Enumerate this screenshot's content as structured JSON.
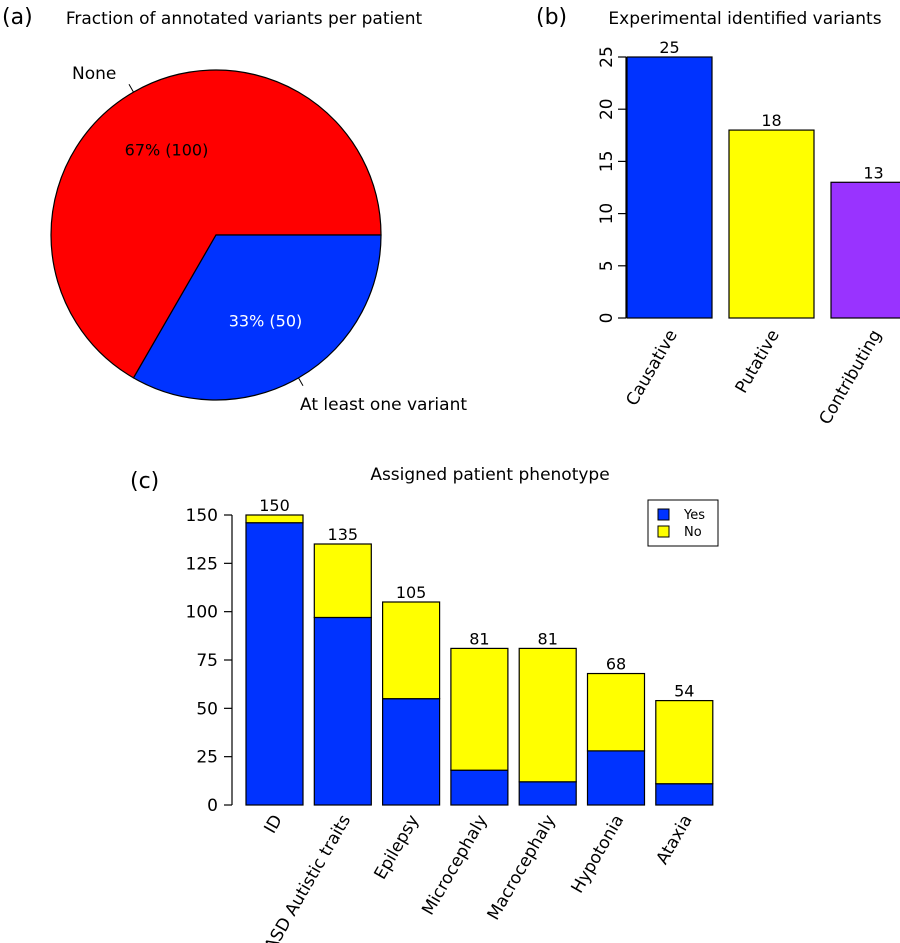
{
  "panels": {
    "a": "(a)",
    "b": "(b)",
    "c": "(c)"
  },
  "chart_data": [
    {
      "type": "pie",
      "title": "Fraction of annotated variants per patient",
      "slices": [
        {
          "name": "None",
          "value": 100,
          "label": "67% (100)",
          "color": "#ff0000",
          "label_color": "#000000"
        },
        {
          "name": "At least one variant",
          "value": 50,
          "label": "33% (50)",
          "color": "#0033ff",
          "label_color": "#ffffff"
        }
      ]
    },
    {
      "type": "bar",
      "title": "Experimental identified variants",
      "categories": [
        "Causative",
        "Putative",
        "Contributing"
      ],
      "values": [
        25,
        18,
        13
      ],
      "value_labels": [
        "25",
        "18",
        "13"
      ],
      "colors": [
        "#0033ff",
        "#ffff00",
        "#9933ff"
      ],
      "ylim": [
        0,
        25
      ],
      "yticks": [
        "0",
        "5",
        "10",
        "15",
        "20",
        "25"
      ]
    },
    {
      "type": "bar",
      "stacked": true,
      "title": "Assigned patient phenotype",
      "categories": [
        "ID",
        "ASD Autistic traits",
        "Epilepsy",
        "Microcephaly",
        "Macrocephaly",
        "Hypotonia",
        "Ataxia"
      ],
      "series": [
        {
          "name": "Yes",
          "color": "#0033ff",
          "values": [
            146,
            97,
            55,
            18,
            12,
            28,
            11
          ]
        },
        {
          "name": "No",
          "color": "#ffff00",
          "values": [
            4,
            38,
            50,
            63,
            69,
            40,
            43
          ]
        }
      ],
      "totals": [
        "150",
        "135",
        "105",
        "81",
        "81",
        "68",
        "54"
      ],
      "ylim": [
        0,
        150
      ],
      "yticks": [
        "0",
        "25",
        "50",
        "75",
        "100",
        "125",
        "150"
      ],
      "legend": "top-right"
    }
  ]
}
